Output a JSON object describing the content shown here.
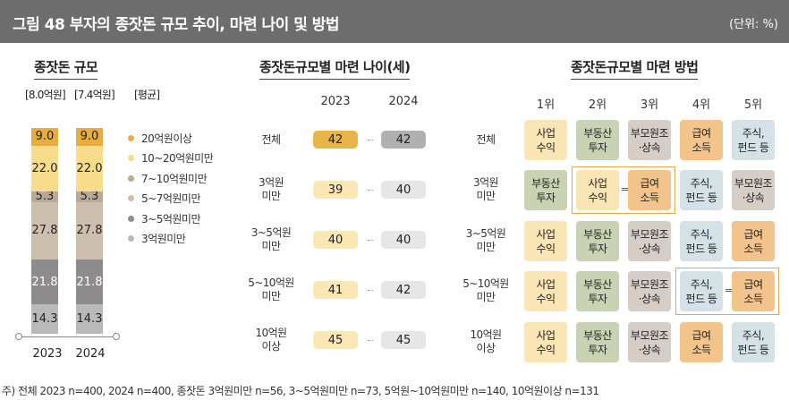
{
  "header": {
    "title": "그림 48  부자의 종잣돈 규모 추이, 마련 나이 및 방법",
    "unit": "(단위: %)"
  },
  "left": {
    "section_title": "종잣돈 규모",
    "total_2023": "[8.0억원]",
    "total_2024": "[7.4억원]",
    "avg_label": "[평균]"
  },
  "middle": {
    "section_title": "종잣돈규모별 마련 나이(세)",
    "year_2023": "2023",
    "year_2024": "2024",
    "rows": [
      {
        "label": "전체",
        "v2023": "42",
        "v2024": "42"
      },
      {
        "label": "3억원\n미만",
        "v2023": "39",
        "v2024": "40"
      },
      {
        "label": "3~5억원\n미만",
        "v2023": "40",
        "v2024": "40"
      },
      {
        "label": "5~10억원\n미만",
        "v2023": "41",
        "v2024": "42"
      },
      {
        "label": "10억원\n이상",
        "v2023": "45",
        "v2024": "45"
      }
    ]
  },
  "right": {
    "section_title": "종잣돈규모별 마련 방법",
    "ranks": [
      "1위",
      "2위",
      "3위",
      "4위",
      "5위"
    ],
    "eq_sign": "=",
    "rows": [
      {
        "label": "전체",
        "items": [
          "사업\n수익",
          "부동산\n투자",
          "부모원조\n·상속",
          "급여\n소득",
          "주식,\n펀드 등"
        ]
      },
      {
        "label": "3억원\n미만",
        "items": [
          "부동산\n투자",
          "사업\n수익",
          "급여\n소득",
          "주식,\n펀드 등",
          "부모원조\n·상속"
        ]
      },
      {
        "label": "3~5억원\n미만",
        "items": [
          "사업\n수익",
          "부동산\n투자",
          "부모원조\n·상속",
          "주식,\n펀드 등",
          "급여\n소득"
        ]
      },
      {
        "label": "5~10억원\n미만",
        "items": [
          "사업\n수익",
          "부동산\n투자",
          "부모원조\n·상속",
          "주식,\n펀드 등",
          "급여\n소득"
        ]
      },
      {
        "label": "10억원\n이상",
        "items": [
          "사업\n수익",
          "부동산\n투자",
          "부모원조\n·상속",
          "급여\n소득",
          "주식,\n펀드 등"
        ]
      }
    ],
    "colors": {
      "사업 수익": "#fae5b5",
      "부동산 투자": "#c9d2b2",
      "부모원조 ·상속": "#d6cdc6",
      "급여 소득": "#f3c38c",
      "주식, 펀드 등": "#d4e2e8"
    }
  },
  "chart_data": {
    "type": "bar",
    "title": "종잣돈 규모",
    "categories": [
      "2023",
      "2024"
    ],
    "stacked": true,
    "series": [
      {
        "name": "3억원미만",
        "values": [
          14.3,
          14.3
        ],
        "color": "#b9b9b9"
      },
      {
        "name": "3~5억원미만",
        "values": [
          21.8,
          21.8
        ],
        "color": "#8e8b8c"
      },
      {
        "name": "5~7억원미만",
        "values": [
          27.8,
          27.8
        ],
        "color": "#cdbfad"
      },
      {
        "name": "7~10억원미만",
        "values": [
          5.3,
          5.3
        ],
        "color": "#b7aa98"
      },
      {
        "name": "10~20억원미만",
        "values": [
          22.0,
          22.0
        ],
        "color": "#f7dc8c"
      },
      {
        "name": "20억원이상",
        "values": [
          9.0,
          9.0
        ],
        "color": "#e9ac3e"
      }
    ],
    "legend_order": [
      "20억원이상",
      "10~20억원미만",
      "7~10억원미만",
      "5~7억원미만",
      "3~5억원미만",
      "3억원미만"
    ],
    "ylim": [
      0,
      100
    ]
  },
  "age_pill_colors": {
    "2023": "#fbe7b4",
    "2024": "#e6e6e6",
    "2023_total": "#e9b448",
    "2024_total": "#b0b0b0"
  },
  "footer": "주) 전체 2023 n=400, 2024 n=400, 종잣돈 3억원미만 n=56, 3~5억원미만 n=73, 5억원~10억원미만 n=140, 10억원이상 n=131"
}
